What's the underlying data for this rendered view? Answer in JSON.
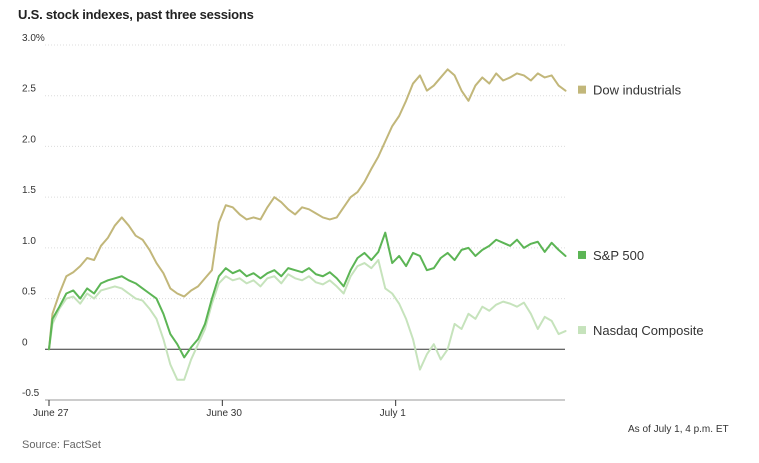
{
  "title": "U.S. stock indexes, past three sessions",
  "source": "Source: FactSet",
  "as_of": "As of July 1, 4 p.m. ET",
  "chart_data": {
    "type": "line",
    "ylim": [
      -0.5,
      3.0
    ],
    "y_ticks": [
      {
        "value": 3.0,
        "label": "3.0%"
      },
      {
        "value": 2.5,
        "label": "2.5"
      },
      {
        "value": 2.0,
        "label": "2.0"
      },
      {
        "value": 1.5,
        "label": "1.5"
      },
      {
        "value": 1.0,
        "label": "1.0"
      },
      {
        "value": 0.5,
        "label": "0.5"
      },
      {
        "value": 0,
        "label": "0"
      },
      {
        "value": -0.5,
        "label": "-0.5"
      }
    ],
    "x_domain": [
      0,
      3
    ],
    "x_ticks": [
      {
        "value": 0,
        "label": "June 27"
      },
      {
        "value": 1,
        "label": "June 30"
      },
      {
        "value": 2,
        "label": "July 1"
      }
    ],
    "grid": true,
    "legend_placement": "right",
    "series": [
      {
        "name": "Dow industrials",
        "color": "#c2b77a",
        "x": [
          0,
          0.02,
          0.06,
          0.1,
          0.14,
          0.18,
          0.22,
          0.26,
          0.3,
          0.34,
          0.38,
          0.42,
          0.46,
          0.5,
          0.54,
          0.58,
          0.62,
          0.66,
          0.7,
          0.74,
          0.78,
          0.82,
          0.86,
          0.9,
          0.94,
          0.98,
          1.02,
          1.06,
          1.1,
          1.14,
          1.18,
          1.22,
          1.26,
          1.3,
          1.34,
          1.38,
          1.42,
          1.46,
          1.5,
          1.54,
          1.58,
          1.62,
          1.66,
          1.7,
          1.74,
          1.78,
          1.82,
          1.86,
          1.9,
          1.94,
          1.98,
          2.02,
          2.06,
          2.1,
          2.14,
          2.18,
          2.22,
          2.26,
          2.3,
          2.34,
          2.38,
          2.42,
          2.46,
          2.5,
          2.54,
          2.58,
          2.62,
          2.66,
          2.7,
          2.74,
          2.78,
          2.82,
          2.86,
          2.9,
          2.94,
          2.98
        ],
        "values": [
          0,
          0.35,
          0.55,
          0.72,
          0.76,
          0.82,
          0.9,
          0.88,
          1.02,
          1.1,
          1.22,
          1.3,
          1.22,
          1.12,
          1.08,
          0.98,
          0.85,
          0.75,
          0.6,
          0.55,
          0.52,
          0.58,
          0.62,
          0.7,
          0.78,
          1.25,
          1.42,
          1.4,
          1.33,
          1.28,
          1.3,
          1.28,
          1.4,
          1.5,
          1.45,
          1.38,
          1.33,
          1.4,
          1.38,
          1.34,
          1.3,
          1.28,
          1.3,
          1.4,
          1.5,
          1.55,
          1.65,
          1.78,
          1.9,
          2.05,
          2.2,
          2.3,
          2.45,
          2.62,
          2.7,
          2.55,
          2.6,
          2.68,
          2.76,
          2.7,
          2.55,
          2.45,
          2.6,
          2.68,
          2.62,
          2.72,
          2.65,
          2.68,
          2.72,
          2.7,
          2.65,
          2.72,
          2.68,
          2.7,
          2.6,
          2.55
        ]
      },
      {
        "name": "S&P 500",
        "color": "#5cb555",
        "x": [
          0,
          0.02,
          0.06,
          0.1,
          0.14,
          0.18,
          0.22,
          0.26,
          0.3,
          0.34,
          0.38,
          0.42,
          0.46,
          0.5,
          0.54,
          0.58,
          0.62,
          0.66,
          0.7,
          0.74,
          0.78,
          0.82,
          0.86,
          0.9,
          0.94,
          0.98,
          1.02,
          1.06,
          1.1,
          1.14,
          1.18,
          1.22,
          1.26,
          1.3,
          1.34,
          1.38,
          1.42,
          1.46,
          1.5,
          1.54,
          1.58,
          1.62,
          1.66,
          1.7,
          1.74,
          1.78,
          1.82,
          1.86,
          1.9,
          1.94,
          1.98,
          2.02,
          2.06,
          2.1,
          2.14,
          2.18,
          2.22,
          2.26,
          2.3,
          2.34,
          2.38,
          2.42,
          2.46,
          2.5,
          2.54,
          2.58,
          2.62,
          2.66,
          2.7,
          2.74,
          2.78,
          2.82,
          2.86,
          2.9,
          2.94,
          2.98
        ],
        "values": [
          0,
          0.3,
          0.42,
          0.55,
          0.58,
          0.5,
          0.6,
          0.55,
          0.65,
          0.68,
          0.7,
          0.72,
          0.68,
          0.65,
          0.6,
          0.55,
          0.5,
          0.35,
          0.15,
          0.05,
          -0.08,
          0.02,
          0.1,
          0.25,
          0.5,
          0.72,
          0.8,
          0.75,
          0.78,
          0.72,
          0.75,
          0.7,
          0.75,
          0.78,
          0.72,
          0.8,
          0.78,
          0.76,
          0.8,
          0.74,
          0.72,
          0.76,
          0.7,
          0.62,
          0.78,
          0.9,
          0.95,
          0.88,
          0.96,
          1.15,
          0.85,
          0.92,
          0.82,
          0.95,
          0.92,
          0.78,
          0.8,
          0.9,
          0.95,
          0.88,
          0.98,
          1.0,
          0.92,
          0.98,
          1.02,
          1.08,
          1.05,
          1.02,
          1.08,
          1.0,
          1.04,
          1.06,
          0.96,
          1.05,
          0.98,
          0.92
        ]
      },
      {
        "name": "Nasdaq Composite",
        "color": "#c6e3bc",
        "x": [
          0,
          0.02,
          0.06,
          0.1,
          0.14,
          0.18,
          0.22,
          0.26,
          0.3,
          0.34,
          0.38,
          0.42,
          0.46,
          0.5,
          0.54,
          0.58,
          0.62,
          0.66,
          0.7,
          0.74,
          0.78,
          0.82,
          0.86,
          0.9,
          0.94,
          0.98,
          1.02,
          1.06,
          1.1,
          1.14,
          1.18,
          1.22,
          1.26,
          1.3,
          1.34,
          1.38,
          1.42,
          1.46,
          1.5,
          1.54,
          1.58,
          1.62,
          1.66,
          1.7,
          1.74,
          1.78,
          1.82,
          1.86,
          1.9,
          1.94,
          1.98,
          2.02,
          2.06,
          2.1,
          2.14,
          2.18,
          2.22,
          2.26,
          2.3,
          2.34,
          2.38,
          2.42,
          2.46,
          2.5,
          2.54,
          2.58,
          2.62,
          2.66,
          2.7,
          2.74,
          2.78,
          2.82,
          2.86,
          2.9,
          2.94,
          2.98
        ],
        "values": [
          0,
          0.25,
          0.4,
          0.5,
          0.52,
          0.45,
          0.55,
          0.5,
          0.58,
          0.6,
          0.62,
          0.6,
          0.55,
          0.5,
          0.48,
          0.4,
          0.3,
          0.1,
          -0.15,
          -0.3,
          -0.3,
          -0.1,
          0.05,
          0.2,
          0.45,
          0.65,
          0.72,
          0.68,
          0.7,
          0.65,
          0.68,
          0.62,
          0.7,
          0.72,
          0.65,
          0.74,
          0.7,
          0.68,
          0.72,
          0.66,
          0.64,
          0.68,
          0.62,
          0.55,
          0.72,
          0.82,
          0.85,
          0.8,
          0.88,
          0.6,
          0.55,
          0.45,
          0.3,
          0.1,
          -0.2,
          -0.05,
          0.05,
          -0.1,
          0.0,
          0.25,
          0.2,
          0.35,
          0.3,
          0.42,
          0.38,
          0.44,
          0.47,
          0.45,
          0.42,
          0.46,
          0.35,
          0.2,
          0.32,
          0.28,
          0.15,
          0.18
        ]
      }
    ]
  }
}
